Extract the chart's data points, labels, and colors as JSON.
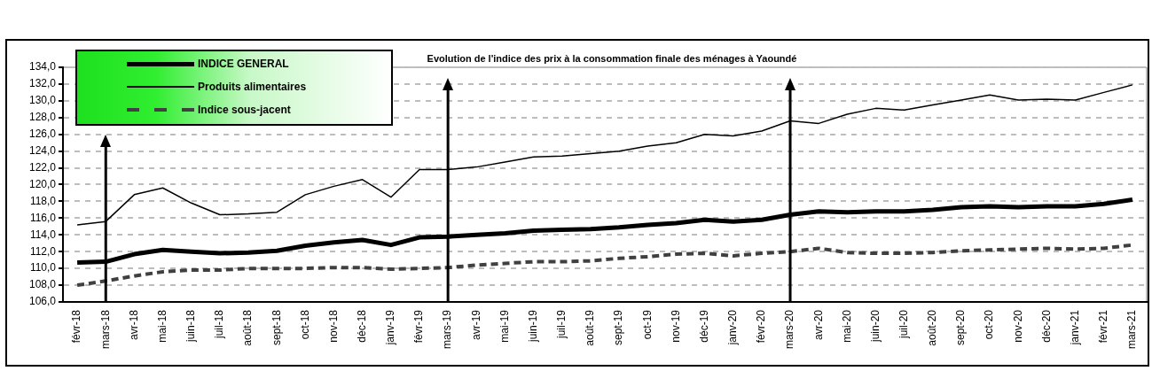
{
  "chart_data": {
    "type": "line",
    "title": "Evolution de l'indice des prix à la consommation finale des ménages à Yaoundé",
    "categories": [
      "févr-18",
      "mars-18",
      "avr-18",
      "mai-18",
      "juin-18",
      "juil-18",
      "août-18",
      "sept-18",
      "oct-18",
      "nov-18",
      "déc-18",
      "janv-19",
      "févr-19",
      "mars-19",
      "avr-19",
      "mai-19",
      "juin-19",
      "juil-19",
      "août-19",
      "sept-19",
      "oct-19",
      "nov-19",
      "déc-19",
      "janv-20",
      "févr-20",
      "mars-20",
      "avr-20",
      "mai-20",
      "juin-20",
      "juil-20",
      "août-20",
      "sept-20",
      "oct-20",
      "nov-20",
      "déc-20",
      "janv-21",
      "févr-21",
      "mars-21"
    ],
    "series": [
      {
        "name": "INDICE GENERAL",
        "color": "#000000",
        "line_style": "solid",
        "values": [
          110.7,
          110.8,
          111.7,
          112.2,
          112.0,
          111.8,
          111.9,
          112.1,
          112.7,
          113.1,
          113.4,
          112.8,
          113.7,
          113.8,
          114.0,
          114.2,
          114.5,
          114.6,
          114.7,
          114.9,
          115.2,
          115.4,
          115.8,
          115.6,
          115.8,
          116.4,
          116.8,
          116.7,
          116.8,
          116.8,
          117.0,
          117.3,
          117.4,
          117.3,
          117.4,
          117.4,
          117.7,
          118.2
        ]
      },
      {
        "name": "Produits alimentaires",
        "color": "#000000",
        "line_style": "solid",
        "values": [
          115.2,
          115.6,
          118.8,
          119.6,
          117.8,
          116.4,
          116.5,
          116.7,
          118.8,
          119.8,
          120.6,
          118.5,
          121.8,
          121.8,
          122.1,
          122.7,
          123.3,
          123.4,
          123.7,
          124.0,
          124.6,
          125.0,
          126.0,
          125.8,
          126.4,
          127.6,
          127.3,
          128.4,
          129.1,
          128.9,
          129.5,
          130.1,
          130.7,
          130.1,
          130.2,
          130.1,
          131.0,
          131.9
        ]
      },
      {
        "name": "Indice sous-jacent",
        "color": "#404040",
        "line_style": "dashed",
        "values": [
          108.0,
          108.5,
          109.1,
          109.6,
          109.8,
          109.8,
          110.0,
          110.0,
          110.0,
          110.1,
          110.1,
          109.9,
          110.0,
          110.1,
          110.4,
          110.6,
          110.8,
          110.8,
          110.9,
          111.2,
          111.4,
          111.7,
          111.8,
          111.5,
          111.8,
          112.0,
          112.4,
          111.9,
          111.8,
          111.8,
          111.9,
          112.1,
          112.2,
          112.3,
          112.4,
          112.3,
          112.4,
          112.8
        ]
      }
    ],
    "ylim": [
      106,
      134
    ],
    "yticks": [
      {
        "value": 106,
        "label": "106,0"
      },
      {
        "value": 108,
        "label": "108,0"
      },
      {
        "value": 110,
        "label": "110,0"
      },
      {
        "value": 112,
        "label": "112,0"
      },
      {
        "value": 114,
        "label": "114,0"
      },
      {
        "value": 116,
        "label": "116,0"
      },
      {
        "value": 118,
        "label": "118,0"
      },
      {
        "value": 120,
        "label": "120,0"
      },
      {
        "value": 122,
        "label": "122,0"
      },
      {
        "value": 124,
        "label": "124,0"
      },
      {
        "value": 126,
        "label": "126,0"
      },
      {
        "value": 128,
        "label": "128,0"
      },
      {
        "value": 130,
        "label": "130,0"
      },
      {
        "value": 132,
        "label": "132,0"
      },
      {
        "value": 134,
        "label": "134,0"
      }
    ],
    "ref_lines": [
      {
        "axis": "x",
        "value": "mars-18",
        "color": "#000000"
      },
      {
        "axis": "x",
        "value": "mars-19",
        "color": "#000000"
      },
      {
        "axis": "x",
        "value": "mars-20",
        "color": "#000000"
      }
    ],
    "grid": "y",
    "legend": "top left",
    "marker": "none"
  }
}
